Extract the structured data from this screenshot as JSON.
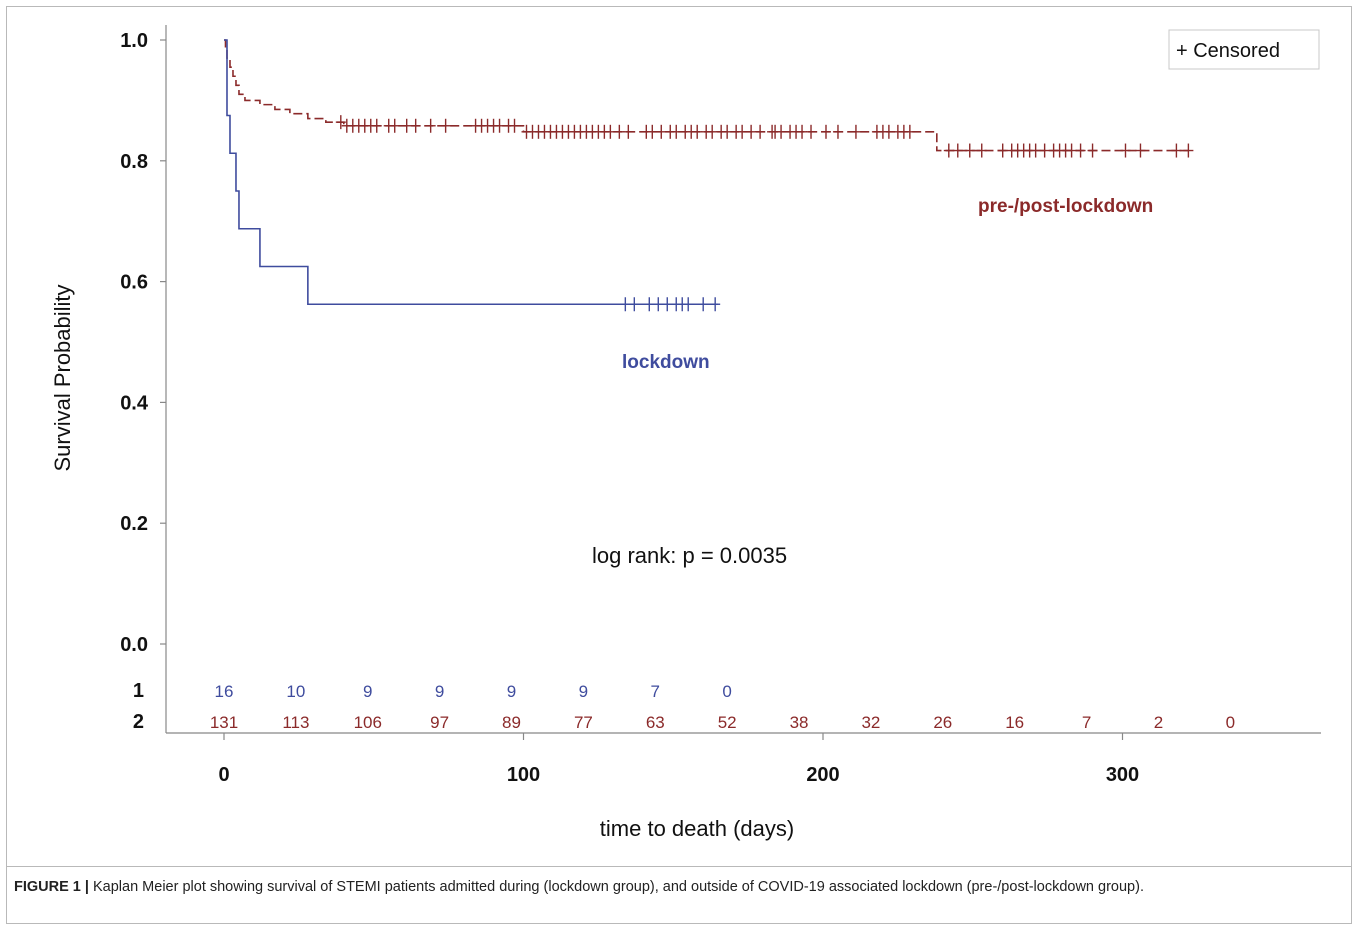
{
  "chart_data": {
    "type": "line",
    "title": "",
    "xlabel": "time to death (days)",
    "ylabel": "Survival Probability",
    "xlim": [
      -20,
      368
    ],
    "ylim": [
      0.0,
      1.0
    ],
    "x_ticks": [
      0,
      100,
      200,
      300
    ],
    "x_tick_labels": [
      "0",
      "100",
      "200",
      "300"
    ],
    "y_ticks": [
      0.0,
      0.2,
      0.4,
      0.6,
      0.8,
      1.0
    ],
    "y_tick_labels": [
      "0.0",
      "0.2",
      "0.4",
      "0.6",
      "0.8",
      "1.0"
    ],
    "grid": false,
    "legend": {
      "placement": "top-right",
      "entries": [
        "+ Censored"
      ]
    },
    "annotations": [
      "log rank: p = 0.0035"
    ],
    "series": [
      {
        "name": "pre-/post-lockdown",
        "color": "#8b2a2a",
        "line_style": "dashed",
        "steps": [
          [
            0,
            1.0
          ],
          [
            0.5,
            0.985
          ],
          [
            1,
            0.97
          ],
          [
            2,
            0.955
          ],
          [
            3,
            0.94
          ],
          [
            4,
            0.925
          ],
          [
            5,
            0.91
          ],
          [
            7,
            0.9
          ],
          [
            12,
            0.893
          ],
          [
            17,
            0.885
          ],
          [
            22,
            0.878
          ],
          [
            28,
            0.87
          ],
          [
            34,
            0.864
          ],
          [
            40,
            0.858
          ],
          [
            100,
            0.848
          ],
          [
            238,
            0.817
          ],
          [
            323,
            0.817
          ]
        ],
        "censor_marks": [
          39,
          41,
          43,
          45,
          47,
          49,
          51,
          55,
          57,
          61,
          64,
          69,
          74,
          84,
          86,
          88,
          90,
          92,
          95,
          97,
          101,
          103,
          105,
          107,
          109,
          111,
          113,
          115,
          117,
          119,
          121,
          123,
          125,
          127,
          129,
          132,
          135,
          141,
          143,
          146,
          149,
          151,
          154,
          156,
          158,
          161,
          163,
          166,
          168,
          171,
          173,
          176,
          179,
          183,
          184,
          186,
          189,
          191,
          193,
          196,
          201,
          205,
          211,
          218,
          220,
          222,
          225,
          227,
          229,
          242,
          245,
          249,
          253,
          260,
          263,
          265,
          267,
          269,
          271,
          274,
          277,
          279,
          281,
          283,
          286,
          290,
          301,
          306,
          318,
          322
        ]
      },
      {
        "name": "lockdown",
        "color": "#3f4c9e",
        "line_style": "solid",
        "steps": [
          [
            0,
            1.0
          ],
          [
            1,
            0.875
          ],
          [
            2,
            0.8125
          ],
          [
            4,
            0.75
          ],
          [
            5,
            0.6875
          ],
          [
            12,
            0.625
          ],
          [
            28,
            0.5625
          ],
          [
            165,
            0.5625
          ]
        ],
        "censor_marks": [
          134,
          137,
          142,
          145,
          148,
          151,
          153,
          155,
          160,
          164
        ]
      }
    ],
    "risk_table": {
      "times": [
        0,
        24,
        48,
        72,
        96,
        120,
        144,
        168,
        192,
        216,
        240,
        264,
        288,
        312,
        336
      ],
      "rows": [
        {
          "label": "1",
          "color": "#3f4c9e",
          "counts": [
            "16",
            "10",
            "9",
            "9",
            "9",
            "9",
            "7",
            "0"
          ]
        },
        {
          "label": "2",
          "color": "#8b2a2a",
          "counts": [
            "131",
            "113",
            "106",
            "97",
            "89",
            "77",
            "63",
            "52",
            "38",
            "32",
            "26",
            "16",
            "7",
            "2",
            "0"
          ]
        }
      ]
    }
  },
  "caption": {
    "figure_number": "FIGURE 1 |",
    "text": "Kaplan Meier plot showing survival of STEMI patients admitted during (lockdown group), and outside of COVID-19 associated lockdown (pre-/post-lockdown group)."
  }
}
